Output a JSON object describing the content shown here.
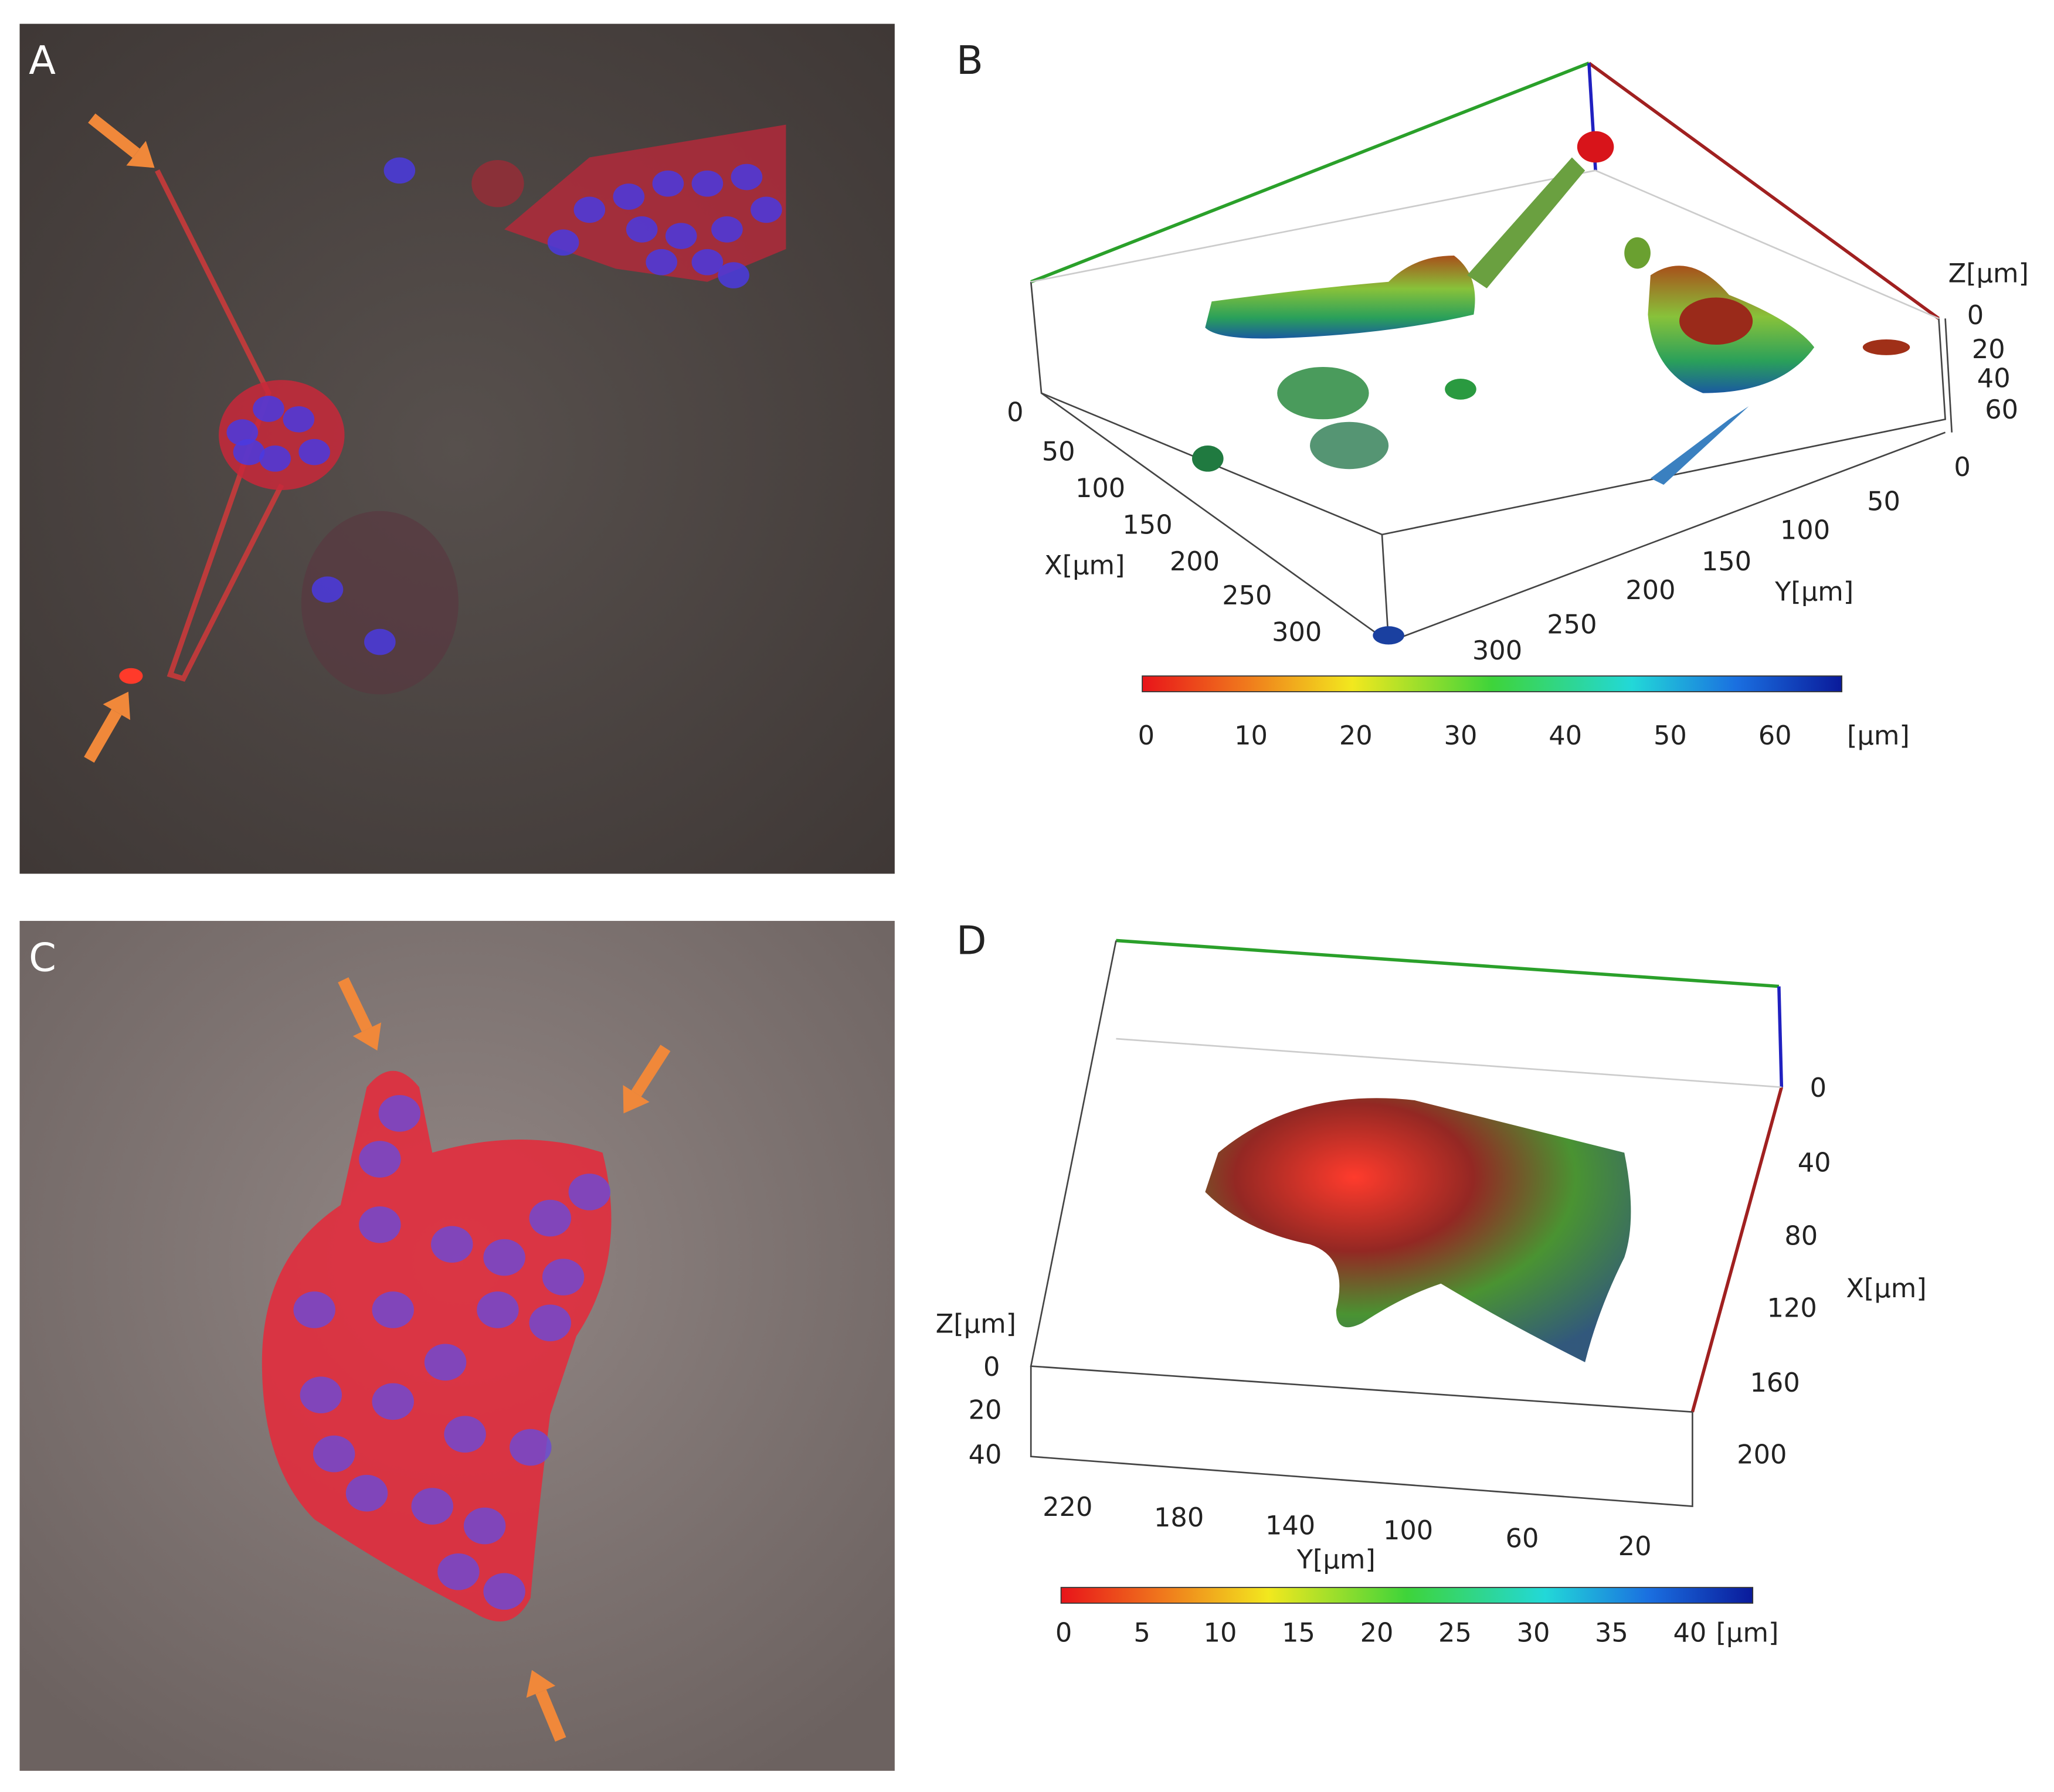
{
  "panels": {
    "a": {
      "label": "A"
    },
    "b": {
      "label": "B",
      "x_axis": {
        "title": "X[µm]",
        "ticks": [
          0,
          50,
          100,
          150,
          200,
          250,
          300
        ]
      },
      "y_axis": {
        "title": "Y[µm]",
        "ticks": [
          300,
          250,
          200,
          150,
          100,
          50,
          0
        ]
      },
      "z_axis": {
        "title": "Z[µm]",
        "ticks": [
          0,
          20,
          40,
          60
        ]
      },
      "colorbar": {
        "ticks": [
          0,
          10,
          20,
          30,
          40,
          50,
          60
        ],
        "unit": "[µm]"
      }
    },
    "c": {
      "label": "C"
    },
    "d": {
      "label": "D",
      "x_axis": {
        "title": "X[µm]",
        "ticks": [
          0,
          40,
          80,
          120,
          160,
          200
        ]
      },
      "y_axis": {
        "title": "Y[µm]",
        "ticks": [
          220,
          180,
          140,
          100,
          60,
          20
        ]
      },
      "z_axis": {
        "title": "Z[µm]",
        "ticks": [
          0,
          20,
          40
        ]
      },
      "colorbar": {
        "ticks": [
          0,
          5,
          10,
          15,
          20,
          25,
          30,
          35,
          40
        ],
        "unit": "[µm]"
      }
    }
  }
}
